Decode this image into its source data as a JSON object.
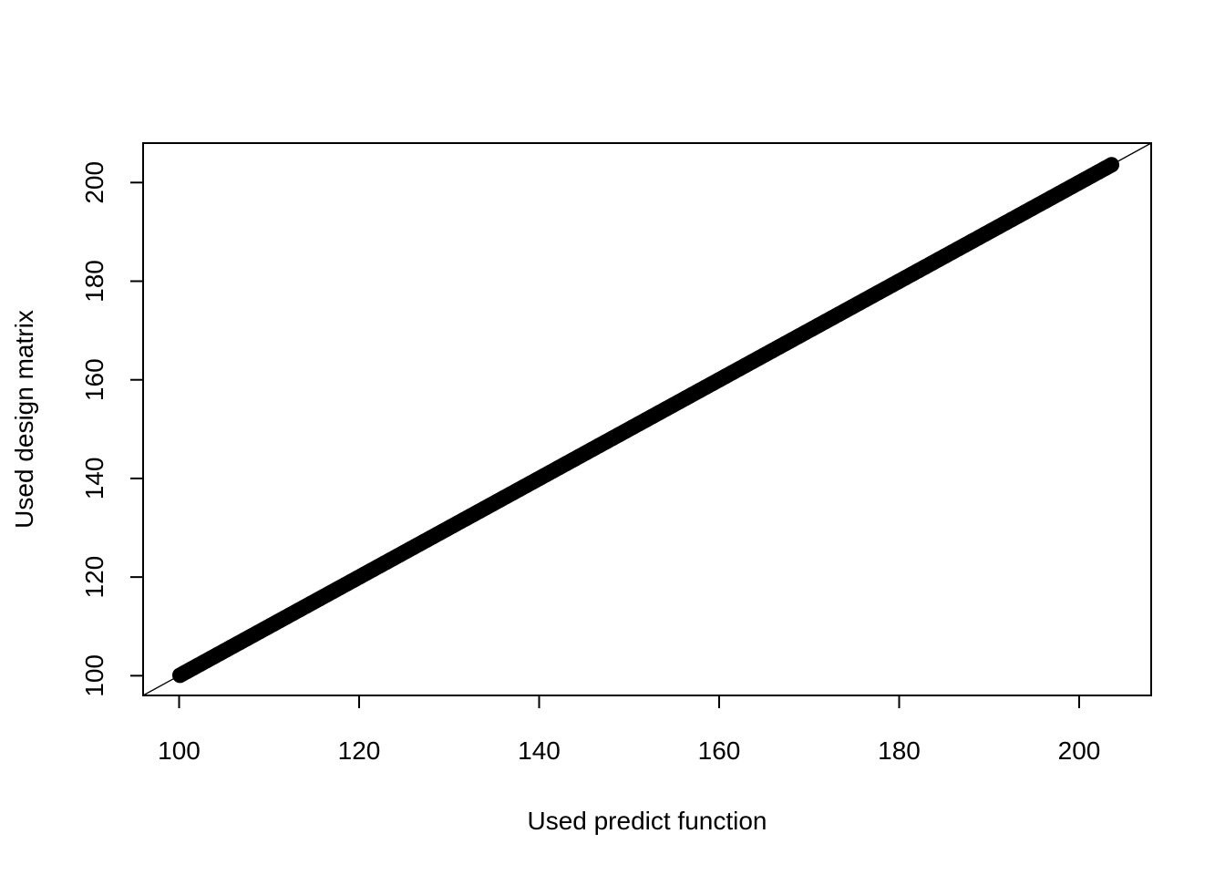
{
  "chart_data": {
    "type": "scatter",
    "title": "",
    "xlabel": "Used predict function",
    "ylabel": "Used design matrix",
    "xlim": [
      96,
      208
    ],
    "ylim": [
      96,
      208
    ],
    "x_ticks": [
      100,
      120,
      140,
      160,
      180,
      200
    ],
    "y_ticks": [
      100,
      120,
      140,
      160,
      180,
      200
    ],
    "grid": false,
    "reference_line": {
      "intercept": 0,
      "slope": 1
    },
    "point_style": "open circles, black, heavily overplotted",
    "series": [
      {
        "x_range": [
          100.1,
          203.6
        ],
        "relation": "y = x",
        "n_points": "dense"
      }
    ],
    "colors": {
      "points": "#000000",
      "line": "#000000",
      "axes": "#000000"
    }
  }
}
